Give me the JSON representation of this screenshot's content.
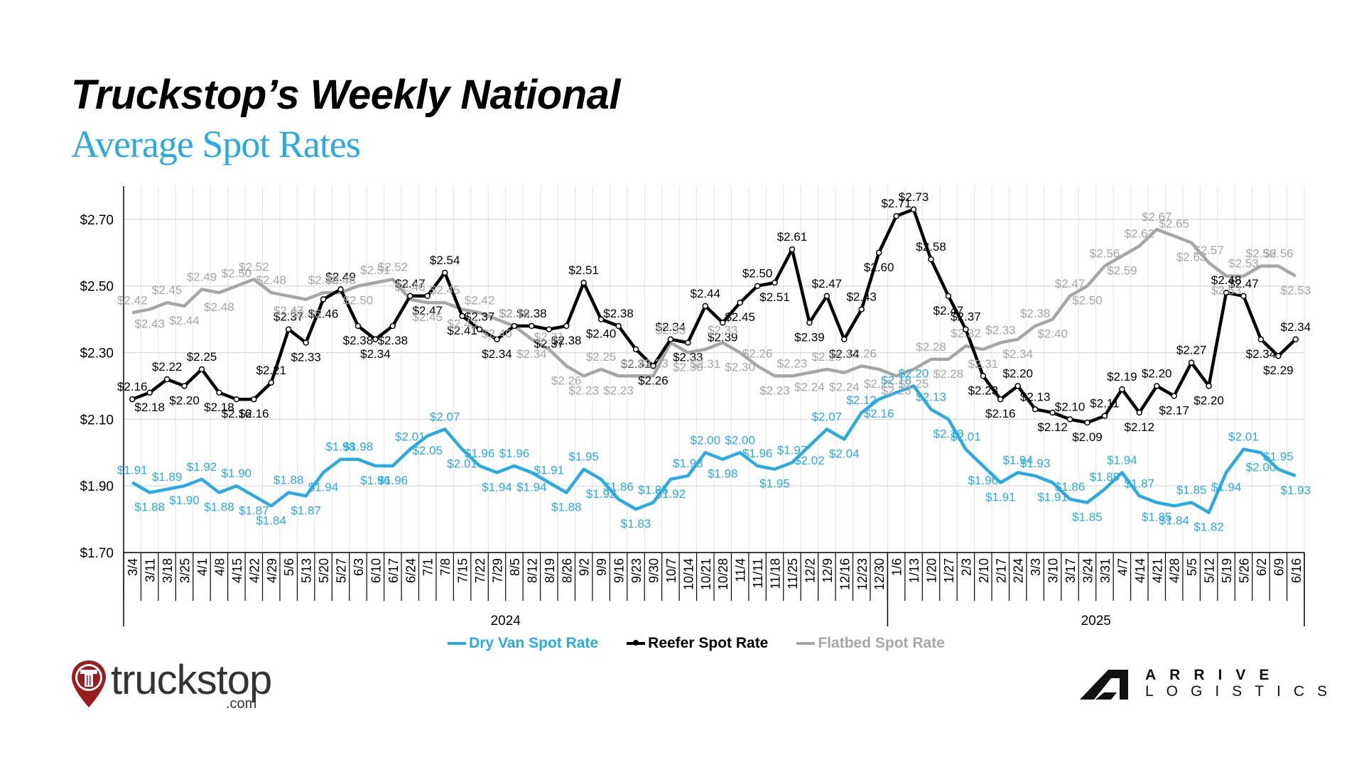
{
  "header": {
    "title_line1": "Truckstop’s Weekly National",
    "title_line2": "Average Spot Rates"
  },
  "colors": {
    "dry_van": "#29abe2",
    "reefer": "#000000",
    "flatbed": "#a6a6a6",
    "title_accent": "#29abe2",
    "gridline": "#d9d9d9",
    "truckstop_red": "#9b1b1f"
  },
  "logos": {
    "truckstop_word": "truckstop",
    "truckstop_com": ".com",
    "arrive_top": "ARRIVE",
    "arrive_bottom": "LOGISTICS"
  },
  "chart_data": {
    "type": "line",
    "title": "Truckstop’s Weekly National Average Spot Rates",
    "xlabel": "",
    "ylabel": "",
    "ylim": [
      1.7,
      2.8
    ],
    "yticks": [
      1.7,
      1.9,
      2.1,
      2.3,
      2.5,
      2.7
    ],
    "ytick_labels": [
      "$1.70",
      "$1.90",
      "$2.10",
      "$2.30",
      "$2.50",
      "$2.70"
    ],
    "grid": true,
    "legend_position": "bottom",
    "year_groups": [
      {
        "label": "2024",
        "start": 0,
        "end": 43
      },
      {
        "label": "2025",
        "start": 44,
        "end": 67
      }
    ],
    "categories": [
      "3/4",
      "3/11",
      "3/18",
      "3/25",
      "4/1",
      "4/8",
      "4/15",
      "4/22",
      "4/29",
      "5/6",
      "5/13",
      "5/20",
      "5/27",
      "6/3",
      "6/10",
      "6/17",
      "6/24",
      "7/1",
      "7/8",
      "7/15",
      "7/22",
      "7/29",
      "8/5",
      "8/12",
      "8/19",
      "8/26",
      "9/2",
      "9/9",
      "9/16",
      "9/23",
      "9/30",
      "10/7",
      "10/14",
      "10/21",
      "10/28",
      "11/4",
      "11/11",
      "11/18",
      "11/25",
      "12/2",
      "12/9",
      "12/16",
      "12/23",
      "12/30",
      "1/6",
      "1/13",
      "1/20",
      "1/27",
      "2/3",
      "2/10",
      "2/17",
      "2/24",
      "3/3",
      "3/10",
      "3/17",
      "3/24",
      "3/31",
      "4/7",
      "4/14",
      "4/21",
      "4/28",
      "5/5",
      "5/12",
      "5/19",
      "5/26",
      "6/2",
      "6/9",
      "6/16"
    ],
    "series": [
      {
        "name": "Dry Van Spot Rate",
        "color": "#29abe2",
        "markers": false,
        "values": [
          1.91,
          1.88,
          1.89,
          1.9,
          1.92,
          1.88,
          1.9,
          1.87,
          1.84,
          1.88,
          1.87,
          1.94,
          1.98,
          1.98,
          1.96,
          1.96,
          2.01,
          2.05,
          2.07,
          2.01,
          1.96,
          1.94,
          1.96,
          1.94,
          1.91,
          1.88,
          1.95,
          1.92,
          1.86,
          1.83,
          1.85,
          1.92,
          1.93,
          2.0,
          1.98,
          2.0,
          1.96,
          1.95,
          1.97,
          2.02,
          2.07,
          2.04,
          2.12,
          2.16,
          2.18,
          2.2,
          2.13,
          2.1,
          2.01,
          1.96,
          1.91,
          1.94,
          1.93,
          1.91,
          1.86,
          1.85,
          1.89,
          1.94,
          1.87,
          1.85,
          1.84,
          1.85,
          1.82,
          1.94,
          2.01,
          2.0,
          1.95,
          1.93
        ]
      },
      {
        "name": "Reefer Spot Rate",
        "color": "#000000",
        "markers": true,
        "values": [
          2.16,
          2.18,
          2.22,
          2.2,
          2.25,
          2.18,
          2.16,
          2.16,
          2.21,
          2.37,
          2.33,
          2.46,
          2.49,
          2.38,
          2.34,
          2.38,
          2.47,
          2.47,
          2.54,
          2.41,
          2.37,
          2.34,
          2.38,
          2.38,
          2.37,
          2.38,
          2.51,
          2.4,
          2.38,
          2.31,
          2.26,
          2.34,
          2.33,
          2.44,
          2.39,
          2.45,
          2.5,
          2.51,
          2.61,
          2.39,
          2.47,
          2.34,
          2.43,
          2.6,
          2.71,
          2.73,
          2.58,
          2.47,
          2.37,
          2.23,
          2.16,
          2.2,
          2.13,
          2.12,
          2.1,
          2.09,
          2.11,
          2.19,
          2.12,
          2.2,
          2.17,
          2.27,
          2.2,
          2.48,
          2.47,
          2.34,
          2.29,
          2.34
        ]
      },
      {
        "name": "Flatbed Spot Rate",
        "color": "#a6a6a6",
        "markers": false,
        "values": [
          2.42,
          2.43,
          2.45,
          2.44,
          2.49,
          2.48,
          2.5,
          2.52,
          2.48,
          2.47,
          2.46,
          2.48,
          2.48,
          2.5,
          2.51,
          2.52,
          2.46,
          2.45,
          2.45,
          2.43,
          2.42,
          2.4,
          2.38,
          2.34,
          2.31,
          2.26,
          2.23,
          2.25,
          2.23,
          2.23,
          2.23,
          2.33,
          2.3,
          2.31,
          2.33,
          2.3,
          2.26,
          2.23,
          2.23,
          2.24,
          2.25,
          2.24,
          2.26,
          2.25,
          2.23,
          2.25,
          2.28,
          2.28,
          2.32,
          2.31,
          2.33,
          2.34,
          2.38,
          2.4,
          2.47,
          2.5,
          2.56,
          2.59,
          2.62,
          2.67,
          2.65,
          2.63,
          2.57,
          2.53,
          2.53,
          2.56,
          2.56,
          2.53
        ]
      }
    ]
  }
}
